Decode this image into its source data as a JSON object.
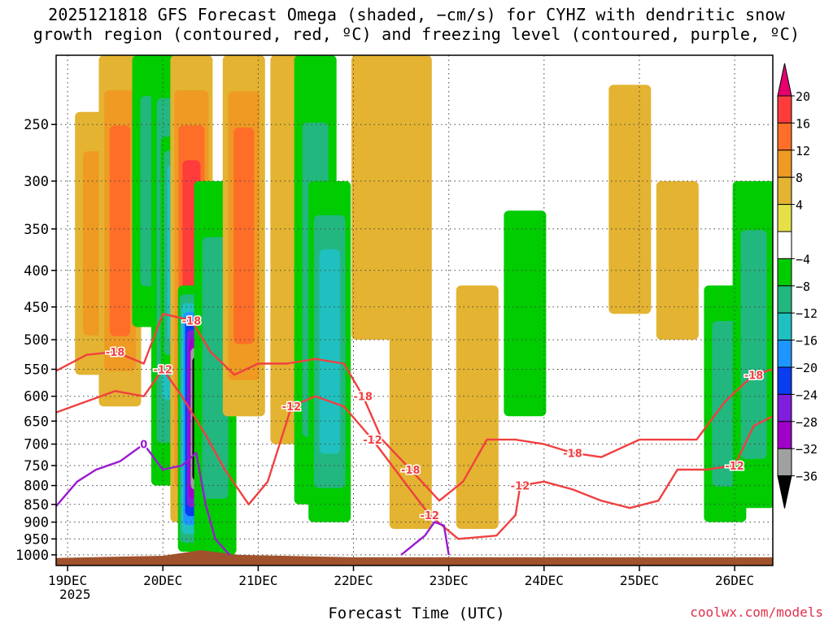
{
  "title_line_1": "2025121818 GFS Forecast Omega (shaded, −cm/s) for CYHZ with dendritic snow",
  "title_line_2": "growth region (contoured, red, ºC) and freezing level (contoured, purple, ºC)",
  "xlabel": "Forecast Time (UTC)",
  "credit": "coolwx.com/models",
  "year_label": "2025",
  "chart_data": {
    "type": "heatmap",
    "title": "2025121818 GFS Forecast Omega (shaded, −cm/s) for CYHZ with dendritic snow growth region (contoured, red, ºC) and freezing level (contoured, purple, ºC)",
    "xlabel": "Forecast Time (UTC)",
    "ylabel": "",
    "x_ticks": [
      "19DEC",
      "20DEC",
      "21DEC",
      "22DEC",
      "23DEC",
      "24DEC",
      "25DEC",
      "26DEC"
    ],
    "xlim_days": [
      -0.12,
      7.4
    ],
    "y_ticks": [
      250,
      300,
      350,
      400,
      450,
      500,
      550,
      600,
      650,
      700,
      750,
      800,
      850,
      900,
      950,
      1000
    ],
    "ylim_hpa": [
      200,
      1035
    ],
    "colorbar_levels": [
      20,
      16,
      12,
      8,
      4,
      -4,
      -8,
      -12,
      -16,
      -20,
      -24,
      -28,
      -32,
      -36
    ],
    "colorbar_labels": [
      "20",
      "16",
      "12",
      "8",
      "4",
      "−4",
      "−8",
      "−12",
      "−16",
      "−20",
      "−24",
      "−28",
      "−32",
      "−36"
    ],
    "colorbar_colors": [
      "#e6006e",
      "#ff3c3c",
      "#ff6e28",
      "#ee9a23",
      "#e3b331",
      "#e6e048",
      "#ffffff",
      "#00cc00",
      "#22b77e",
      "#20c0c0",
      "#1e96ff",
      "#0a3cf0",
      "#7f1fdc",
      "#a000c8",
      "#a0a0a0",
      "#000000"
    ],
    "contour_labels": [
      "-18",
      "-12",
      "-18",
      "-12",
      "-18",
      "-12",
      "-18",
      "-12",
      "-18",
      "-12",
      "-18",
      "-12",
      "0"
    ],
    "omega_features": [
      {
        "day": 0.3,
        "p_top": 240,
        "p_bot": 560,
        "value": 10
      },
      {
        "day": 0.55,
        "p_top": 200,
        "p_bot": 620,
        "value": 14
      },
      {
        "day": 0.9,
        "p_top": 200,
        "p_bot": 480,
        "value": -8
      },
      {
        "day": 1.1,
        "p_top": 200,
        "p_bot": 800,
        "value": -14
      },
      {
        "day": 1.2,
        "p_top": 260,
        "p_bot": 550,
        "value": -20
      },
      {
        "day": 1.3,
        "p_top": 200,
        "p_bot": 900,
        "value": 16
      },
      {
        "day": 1.38,
        "p_top": 420,
        "p_bot": 990,
        "value": -36
      },
      {
        "day": 1.55,
        "p_top": 300,
        "p_bot": 1000,
        "value": -8
      },
      {
        "day": 1.85,
        "p_top": 200,
        "p_bot": 640,
        "value": 12
      },
      {
        "day": 2.35,
        "p_top": 200,
        "p_bot": 700,
        "value": 6
      },
      {
        "day": 2.6,
        "p_top": 200,
        "p_bot": 850,
        "value": -10
      },
      {
        "day": 2.75,
        "p_top": 300,
        "p_bot": 900,
        "value": -14
      },
      {
        "day": 3.2,
        "p_top": 200,
        "p_bot": 500,
        "value": 6
      },
      {
        "day": 3.6,
        "p_top": 200,
        "p_bot": 920,
        "value": 5
      },
      {
        "day": 4.3,
        "p_top": 420,
        "p_bot": 920,
        "value": 5
      },
      {
        "day": 4.8,
        "p_top": 330,
        "p_bot": 640,
        "value": -6
      },
      {
        "day": 5.9,
        "p_top": 220,
        "p_bot": 460,
        "value": 6
      },
      {
        "day": 6.4,
        "p_top": 300,
        "p_bot": 500,
        "value": 6
      },
      {
        "day": 6.9,
        "p_top": 420,
        "p_bot": 900,
        "value": -10
      },
      {
        "day": 7.2,
        "p_top": 300,
        "p_bot": 860,
        "value": -8
      }
    ],
    "dgz_top_minus18": [
      {
        "day": -0.12,
        "p": 553
      },
      {
        "day": 0.2,
        "p": 525
      },
      {
        "day": 0.5,
        "p": 520
      },
      {
        "day": 0.8,
        "p": 540
      },
      {
        "day": 1.0,
        "p": 460
      },
      {
        "day": 1.3,
        "p": 470
      },
      {
        "day": 1.5,
        "p": 520
      },
      {
        "day": 1.75,
        "p": 560
      },
      {
        "day": 2.0,
        "p": 540
      },
      {
        "day": 2.3,
        "p": 540
      },
      {
        "day": 2.6,
        "p": 532
      },
      {
        "day": 2.9,
        "p": 540
      },
      {
        "day": 3.1,
        "p": 600
      },
      {
        "day": 3.3,
        "p": 690
      },
      {
        "day": 3.6,
        "p": 760
      },
      {
        "day": 3.9,
        "p": 840
      },
      {
        "day": 4.15,
        "p": 790
      },
      {
        "day": 4.4,
        "p": 690
      },
      {
        "day": 4.7,
        "p": 690
      },
      {
        "day": 5.0,
        "p": 700
      },
      {
        "day": 5.3,
        "p": 720
      },
      {
        "day": 5.6,
        "p": 730
      },
      {
        "day": 6.0,
        "p": 690
      },
      {
        "day": 6.3,
        "p": 690
      },
      {
        "day": 6.6,
        "p": 690
      },
      {
        "day": 6.9,
        "p": 610
      },
      {
        "day": 7.2,
        "p": 560
      },
      {
        "day": 7.4,
        "p": 550
      }
    ],
    "dgz_bottom_minus12": [
      {
        "day": -0.12,
        "p": 632
      },
      {
        "day": 0.2,
        "p": 610
      },
      {
        "day": 0.5,
        "p": 590
      },
      {
        "day": 0.8,
        "p": 600
      },
      {
        "day": 1.0,
        "p": 550
      },
      {
        "day": 1.2,
        "p": 600
      },
      {
        "day": 1.45,
        "p": 680
      },
      {
        "day": 1.65,
        "p": 760
      },
      {
        "day": 1.9,
        "p": 850
      },
      {
        "day": 2.1,
        "p": 790
      },
      {
        "day": 2.35,
        "p": 620
      },
      {
        "day": 2.6,
        "p": 600
      },
      {
        "day": 2.9,
        "p": 620
      },
      {
        "day": 3.2,
        "p": 690
      },
      {
        "day": 3.5,
        "p": 780
      },
      {
        "day": 3.8,
        "p": 880
      },
      {
        "day": 4.1,
        "p": 950
      },
      {
        "day": 4.5,
        "p": 940
      },
      {
        "day": 4.7,
        "p": 880
      },
      {
        "day": 4.75,
        "p": 800
      },
      {
        "day": 5.0,
        "p": 790
      },
      {
        "day": 5.3,
        "p": 810
      },
      {
        "day": 5.6,
        "p": 840
      },
      {
        "day": 5.9,
        "p": 860
      },
      {
        "day": 6.2,
        "p": 840
      },
      {
        "day": 6.4,
        "p": 760
      },
      {
        "day": 6.7,
        "p": 760
      },
      {
        "day": 7.0,
        "p": 750
      },
      {
        "day": 7.2,
        "p": 660
      },
      {
        "day": 7.4,
        "p": 640
      }
    ],
    "freezing_level": [
      {
        "day": -0.12,
        "p": 855
      },
      {
        "day": 0.1,
        "p": 790
      },
      {
        "day": 0.3,
        "p": 760
      },
      {
        "day": 0.55,
        "p": 740
      },
      {
        "day": 0.8,
        "p": 700
      },
      {
        "day": 1.0,
        "p": 760
      },
      {
        "day": 1.2,
        "p": 750
      },
      {
        "day": 1.35,
        "p": 720
      },
      {
        "day": 1.45,
        "p": 850
      },
      {
        "day": 1.55,
        "p": 950
      },
      {
        "day": 1.7,
        "p": 1000
      }
    ],
    "freezing_level_dome": [
      {
        "day": 3.5,
        "p": 1000
      },
      {
        "day": 3.75,
        "p": 940
      },
      {
        "day": 3.85,
        "p": 900
      },
      {
        "day": 3.95,
        "p": 910
      },
      {
        "day": 4.0,
        "p": 1000
      }
    ],
    "terrain_surface_hpa": [
      {
        "day": -0.12,
        "p": 1010
      },
      {
        "day": 1.0,
        "p": 1003
      },
      {
        "day": 1.4,
        "p": 985
      },
      {
        "day": 1.8,
        "p": 1000
      },
      {
        "day": 3.0,
        "p": 1008
      },
      {
        "day": 7.4,
        "p": 1008
      }
    ]
  }
}
